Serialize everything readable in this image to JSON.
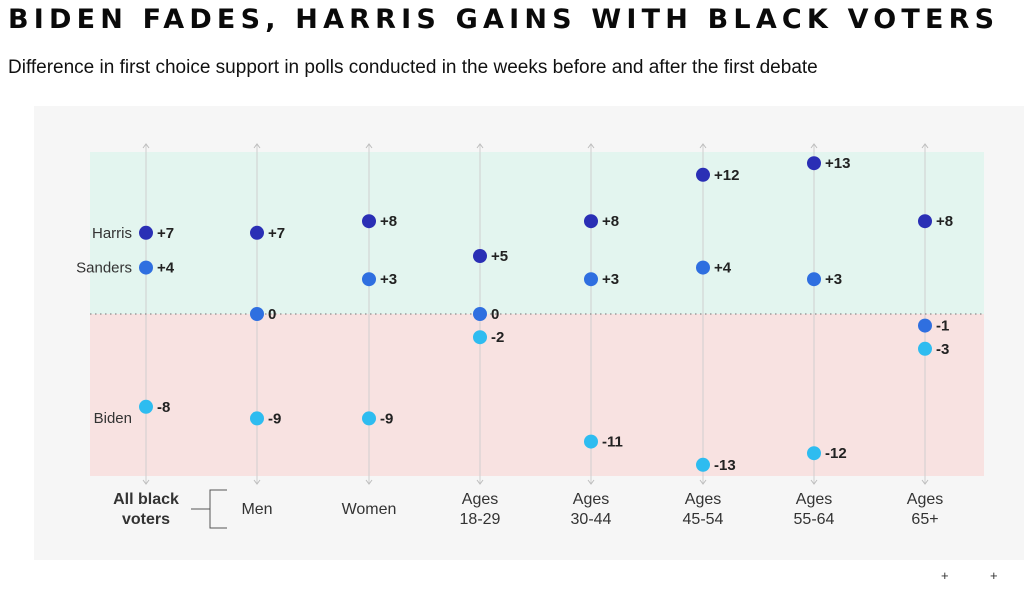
{
  "title": "BIDEN FADES, HARRIS GAINS WITH BLACK VOTERS",
  "subtitle": "Difference in first choice support in polls conducted in the weeks before and after the first debate",
  "colors": {
    "harris": "#2a2fb5",
    "sanders": "#2f6fe0",
    "biden": "#2ebcf0",
    "positive_bg": "#e3f5ef",
    "negative_bg": "#f8e2e1"
  },
  "chart_data": {
    "type": "scatter",
    "title": "BIDEN FADES, HARRIS GAINS WITH BLACK VOTERS",
    "subtitle": "Difference in first choice support in polls conducted in the weeks before and after the first debate",
    "categories": [
      "All black voters",
      "Men",
      "Women",
      "Ages 18-29",
      "Ages 30-44",
      "Ages 45-54",
      "Ages 55-64",
      "Ages 65+"
    ],
    "category_labels": [
      [
        "All black",
        "voters"
      ],
      [
        "Men"
      ],
      [
        "Women"
      ],
      [
        "Ages",
        "18-29"
      ],
      [
        "Ages",
        "30-44"
      ],
      [
        "Ages",
        "45-54"
      ],
      [
        "Ages",
        "55-64"
      ],
      [
        "Ages",
        "65+"
      ]
    ],
    "series": [
      {
        "name": "Harris",
        "color_key": "harris",
        "values": [
          7,
          7,
          8,
          5,
          8,
          12,
          13,
          8
        ],
        "labels": [
          "+7",
          "+7",
          "+8",
          "+5",
          "+8",
          "+12",
          "+13",
          "+8"
        ]
      },
      {
        "name": "Sanders",
        "color_key": "sanders",
        "values": [
          4,
          0,
          3,
          0,
          3,
          4,
          3,
          -1
        ],
        "labels": [
          "+4",
          "0",
          "+3",
          "0",
          "+3",
          "+4",
          "+3",
          "-1"
        ]
      },
      {
        "name": "Biden",
        "color_key": "biden",
        "values": [
          -8,
          -9,
          -9,
          -2,
          -11,
          -13,
          -12,
          -3
        ],
        "labels": [
          "-8",
          "-9",
          "-9",
          "-2",
          "-11",
          "-13",
          "-12",
          "-3"
        ]
      }
    ],
    "ylim": [
      -14,
      14
    ],
    "zero_line": "dotted",
    "legend": "left, labels next to first column"
  },
  "corner_marks": [
    "+",
    "+"
  ]
}
